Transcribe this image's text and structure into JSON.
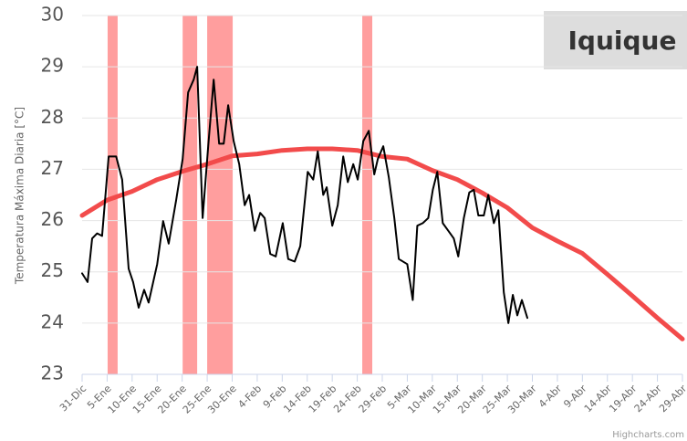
{
  "chart_data": {
    "type": "line",
    "title": "Iquique",
    "y_label": "Temperatura Máxima Diaria [°C]",
    "credits": "Highcharts.com",
    "xlim": [
      0,
      120
    ],
    "xticks": [
      {
        "value": 0,
        "label": "31-Dic"
      },
      {
        "value": 5,
        "label": "5-Ene"
      },
      {
        "value": 10,
        "label": "10-Ene"
      },
      {
        "value": 15,
        "label": "15-Ene"
      },
      {
        "value": 20,
        "label": "20-Ene"
      },
      {
        "value": 25,
        "label": "25-Ene"
      },
      {
        "value": 30,
        "label": "30-Ene"
      },
      {
        "value": 35,
        "label": "4-Feb"
      },
      {
        "value": 40,
        "label": "9-Feb"
      },
      {
        "value": 45,
        "label": "14-Feb"
      },
      {
        "value": 50,
        "label": "19-Feb"
      },
      {
        "value": 55,
        "label": "24-Feb"
      },
      {
        "value": 60,
        "label": "29-Feb"
      },
      {
        "value": 65,
        "label": "5-Mar"
      },
      {
        "value": 70,
        "label": "10-Mar"
      },
      {
        "value": 75,
        "label": "15-Mar"
      },
      {
        "value": 80,
        "label": "20-Mar"
      },
      {
        "value": 85,
        "label": "25-Mar"
      },
      {
        "value": 90,
        "label": "30-Mar"
      },
      {
        "value": 95,
        "label": "4-Abr"
      },
      {
        "value": 100,
        "label": "9-Abr"
      },
      {
        "value": 105,
        "label": "14-Abr"
      },
      {
        "value": 110,
        "label": "19-Abr"
      },
      {
        "value": 115,
        "label": "24-Abr"
      },
      {
        "value": 120,
        "label": "29-Abr"
      }
    ],
    "ylim": [
      23,
      30
    ],
    "yticks": [
      23,
      24,
      25,
      26,
      27,
      28,
      29,
      30
    ],
    "grid": true,
    "plot_bands": {
      "color": "#ff9e9e",
      "ranges": [
        {
          "from": 5.1,
          "to": 7.1
        },
        {
          "from": 20.1,
          "to": 23.0
        },
        {
          "from": 25.0,
          "to": 30.1
        },
        {
          "from": 56.0,
          "to": 58.0
        }
      ]
    },
    "series": [
      {
        "color": "#f24b4b",
        "width": 5,
        "x": [
          0,
          5,
          10,
          15,
          20,
          25,
          30,
          35,
          40,
          45,
          50,
          55,
          60,
          65,
          70,
          75,
          80,
          85,
          90,
          95,
          100,
          105,
          110,
          115,
          120
        ],
        "values": [
          26.1,
          26.4,
          26.57,
          26.8,
          26.96,
          27.1,
          27.26,
          27.3,
          27.37,
          27.4,
          27.4,
          27.37,
          27.25,
          27.2,
          26.98,
          26.8,
          26.54,
          26.25,
          25.86,
          25.6,
          25.36,
          24.95,
          24.53,
          24.1,
          23.69
        ]
      },
      {
        "color": "#000000",
        "width": 2,
        "x": [
          0,
          1.1,
          2,
          3,
          4,
          5.3,
          6.8,
          8,
          9.3,
          10.2,
          11.3,
          12.4,
          13.3,
          15,
          16.2,
          17.3,
          18.8,
          20.1,
          21.2,
          22.3,
          23,
          24.1,
          25.2,
          26.3,
          27.4,
          28.3,
          29.2,
          30.3,
          31.4,
          32.5,
          33.4,
          34.5,
          35.6,
          36.5,
          37.6,
          38.7,
          40.1,
          41.2,
          42.5,
          43.6,
          45.1,
          46.2,
          47.1,
          48.2,
          48.9,
          50,
          51.1,
          52.2,
          53.1,
          54.2,
          55.1,
          56.2,
          57.3,
          58.4,
          59.1,
          60.2,
          61.3,
          62.4,
          63.3,
          65,
          66.1,
          67,
          68.1,
          69.2,
          70.1,
          71,
          72.1,
          73.2,
          74.3,
          75.2,
          76.3,
          77.4,
          78.3,
          79.2,
          80.3,
          81.2,
          82.3,
          83.2,
          84.3,
          85.2,
          86.1,
          87,
          87.9,
          89
        ],
        "values": [
          24.97,
          24.8,
          25.65,
          25.75,
          25.7,
          27.25,
          27.25,
          26.8,
          25.06,
          24.8,
          24.3,
          24.65,
          24.4,
          25.15,
          25.99,
          25.55,
          26.4,
          27.2,
          28.5,
          28.75,
          29.0,
          26.05,
          27.45,
          28.75,
          27.5,
          27.5,
          28.25,
          27.55,
          27.1,
          26.3,
          26.5,
          25.8,
          26.15,
          26.05,
          25.35,
          25.3,
          25.95,
          25.25,
          25.2,
          25.5,
          26.95,
          26.8,
          27.35,
          26.5,
          26.65,
          25.9,
          26.3,
          27.25,
          26.75,
          27.1,
          26.8,
          27.55,
          27.75,
          26.9,
          27.2,
          27.45,
          26.85,
          26.05,
          25.25,
          25.15,
          24.45,
          25.9,
          25.95,
          26.05,
          26.6,
          26.95,
          25.95,
          25.8,
          25.65,
          25.3,
          26.05,
          26.55,
          26.6,
          26.1,
          26.1,
          26.5,
          25.95,
          26.2,
          24.6,
          24.0,
          24.55,
          24.15,
          24.45,
          24.1
        ]
      }
    ]
  }
}
